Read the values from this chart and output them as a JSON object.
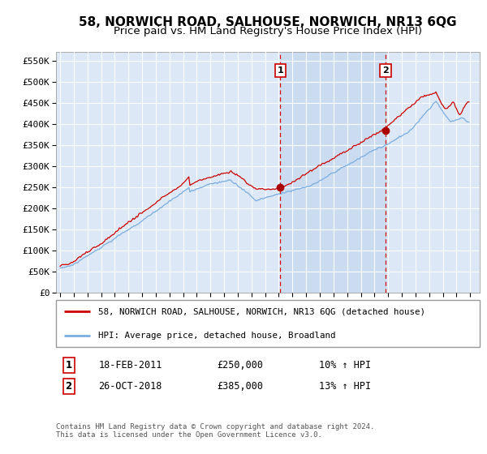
{
  "title": "58, NORWICH ROAD, SALHOUSE, NORWICH, NR13 6QG",
  "subtitle": "Price paid vs. HM Land Registry's House Price Index (HPI)",
  "ylabel_ticks": [
    "£0",
    "£50K",
    "£100K",
    "£150K",
    "£200K",
    "£250K",
    "£300K",
    "£350K",
    "£400K",
    "£450K",
    "£500K",
    "£550K"
  ],
  "ytick_values": [
    0,
    50000,
    100000,
    150000,
    200000,
    250000,
    300000,
    350000,
    400000,
    450000,
    500000,
    550000
  ],
  "ylim": [
    0,
    570000
  ],
  "xlim_start": 1994.7,
  "xlim_end": 2025.7,
  "background_color": "#ffffff",
  "plot_bg_color": "#dce8f5",
  "grid_color": "#ffffff",
  "shade_color": "#c5d8f0",
  "legend_entry1": "58, NORWICH ROAD, SALHOUSE, NORWICH, NR13 6QG (detached house)",
  "legend_entry2": "HPI: Average price, detached house, Broadland",
  "sale1_date": "18-FEB-2011",
  "sale1_price": 250000,
  "sale1_year": 2011.12,
  "sale2_date": "26-OCT-2018",
  "sale2_price": 385000,
  "sale2_year": 2018.81,
  "sale1_hpi": "10% ↑ HPI",
  "sale2_hpi": "13% ↑ HPI",
  "footer": "Contains HM Land Registry data © Crown copyright and database right 2024.\nThis data is licensed under the Open Government Licence v3.0.",
  "line_color_red": "#cc0000",
  "line_color_blue": "#7aade0",
  "dot_color": "#aa0000",
  "sale_vline_color": "#cc0000",
  "title_fontsize": 11,
  "subtitle_fontsize": 9.5
}
